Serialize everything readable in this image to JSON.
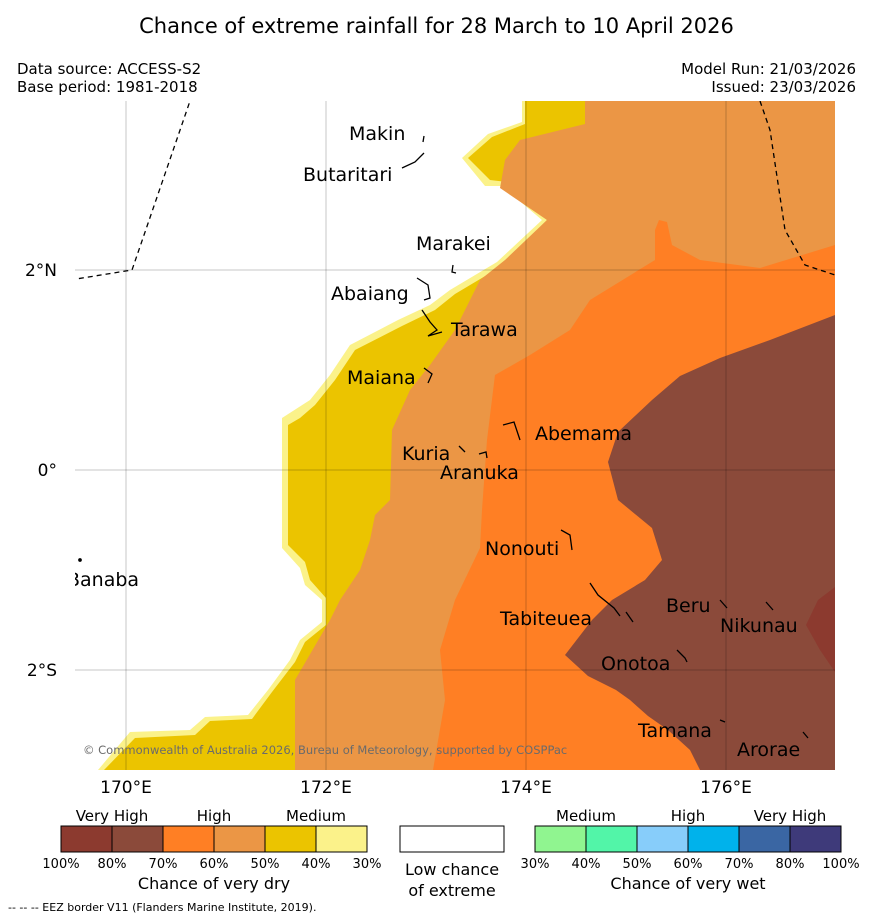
{
  "title": "Chance of extreme rainfall for 28 March to 10 April 2026",
  "meta": {
    "data_source": "Data source: ACCESS-S2",
    "base_period": "Base period: 1981-2018",
    "model_run": "Model Run: 21/03/2026",
    "issued": "Issued: 23/03/2026"
  },
  "axes": {
    "lat_ticks": [
      "2°N",
      "0°",
      "2°S"
    ],
    "lon_ticks": [
      "170°E",
      "172°E",
      "174°E",
      "176°E"
    ]
  },
  "places": [
    "Makin",
    "Butaritari",
    "Marakei",
    "Abaiang",
    "Tarawa",
    "Maiana",
    "Abemama",
    "Kuria",
    "Aranuka",
    "Nonouti",
    "Banaba",
    "Tabiteuea",
    "Beru",
    "Nikunau",
    "Onotoa",
    "Tamana",
    "Arorae"
  ],
  "copyright": "© Commonwealth of Australia 2026, Bureau of Meteorology, supported by COSPPac",
  "legend_dry": {
    "categories": [
      "Very High",
      "High",
      "Medium"
    ],
    "percents": [
      "100%",
      "80%",
      "70%",
      "60%",
      "50%",
      "40%",
      "30%"
    ],
    "caption": "Chance of very dry",
    "colors": [
      "#8c3a2f",
      "#8b4a3a",
      "#ff7f24",
      "#eb9645",
      "#ebc400",
      "#fbf28a"
    ]
  },
  "legend_low": {
    "line1": "Low chance",
    "line2": "of extreme"
  },
  "legend_wet": {
    "categories": [
      "Medium",
      "High",
      "Very High"
    ],
    "percents": [
      "30%",
      "40%",
      "50%",
      "60%",
      "70%",
      "80%",
      "100%"
    ],
    "caption": "Chance of very wet",
    "colors": [
      "#90f590",
      "#52f5a8",
      "#87cdfa",
      "#00b2eb",
      "#3a66a3",
      "#3e3a7a"
    ]
  },
  "footnote": "--  --  -- EEZ border V11 (Flanders Marine Institute, 2019)."
}
